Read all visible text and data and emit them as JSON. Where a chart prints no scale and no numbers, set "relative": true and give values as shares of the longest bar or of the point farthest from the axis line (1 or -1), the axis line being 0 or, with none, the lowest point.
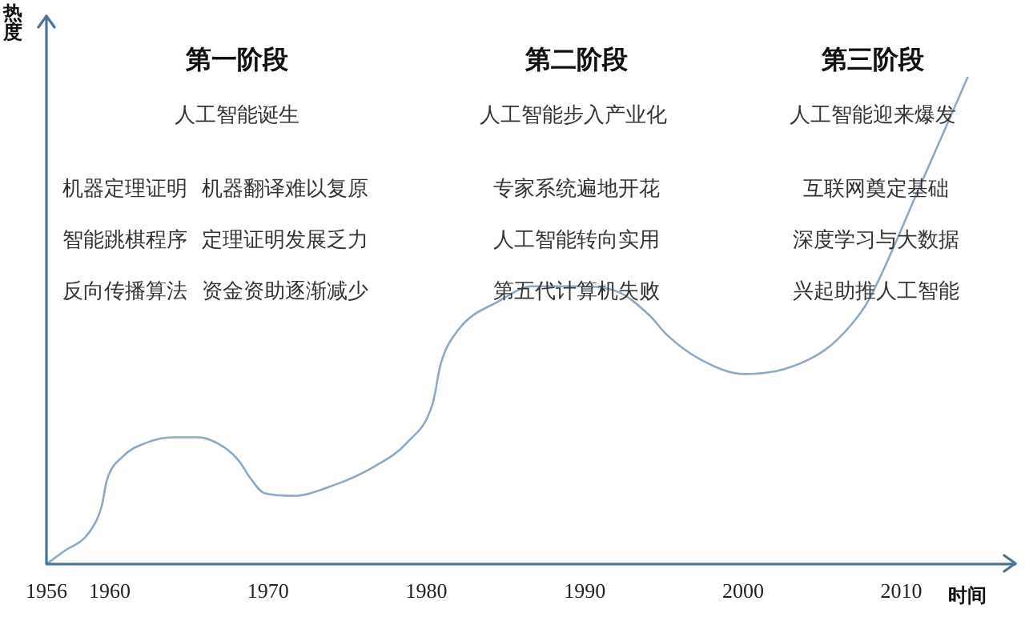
{
  "chart_data": {
    "type": "line",
    "relative": true,
    "xlabel": "时间",
    "ylabel": "热度",
    "marker": "none",
    "xlim": [
      1956,
      2017
    ],
    "xticks": [
      1956,
      1960,
      1970,
      1980,
      1990,
      2000,
      2010
    ],
    "annotations": [
      "第一阶段",
      "人工智能诞生",
      "机器定理证明",
      "机器翻译难以复原",
      "智能跳棋程序",
      "定理证明发展乏力",
      "反向传播算法",
      "资金资助逐渐减少",
      "第二阶段",
      "人工智能步入产业化",
      "专家系统遍地开花",
      "人工智能转向实用",
      "第五代计算机失败",
      "第三阶段",
      "人工智能迎来爆发",
      "互联网奠定基础",
      "深度学习与大数据",
      "兴起助推人工智能"
    ],
    "series": [
      {
        "color": "#8fa9c2",
        "x": [
          1956,
          1957.1,
          1958.7,
          1959.5,
          1959.8,
          1960.8,
          1962.4,
          1964,
          1965.6,
          1967.2,
          1968.2,
          1968.8,
          1969.8,
          1971.6,
          1974,
          1976.7,
          1978.8,
          1980.4,
          1980.9,
          1982,
          1984.6,
          1986.7,
          1989.4,
          1992,
          1994.1,
          1995.2,
          1997.3,
          2000.1,
          2002.6,
          2005.2,
          2006.8,
          2007.9,
          2011.1,
          2014.2
        ],
        "values": [
          0,
          0.026,
          0.065,
          0.12,
          0.17,
          0.22,
          0.25,
          0.26,
          0.26,
          0.24,
          0.21,
          0.18,
          0.145,
          0.14,
          0.16,
          0.2,
          0.25,
          0.33,
          0.41,
          0.48,
          0.54,
          0.57,
          0.57,
          0.56,
          0.51,
          0.47,
          0.42,
          0.39,
          0.4,
          0.44,
          0.49,
          0.54,
          0.77,
          1
        ]
      }
    ]
  }
}
